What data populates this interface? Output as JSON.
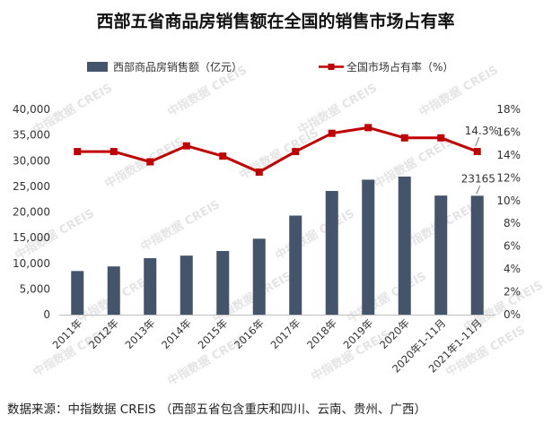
{
  "chart_data": {
    "type": "bar+line",
    "title": "西部五省商品房销售额在全国的销售市场占有率",
    "categories": [
      "2011年",
      "2012年",
      "2013年",
      "2014年",
      "2015年",
      "2016年",
      "2017年",
      "2018年",
      "2019年",
      "2020年",
      "2020年1-11月",
      "2021年1-11月"
    ],
    "series": [
      {
        "name": "西部商品房销售额（亿元）",
        "type": "bar",
        "axis": "left",
        "color": "#44546a",
        "values": [
          8500,
          9400,
          11000,
          11500,
          12400,
          14800,
          19300,
          24100,
          26300,
          26900,
          23200,
          23165
        ]
      },
      {
        "name": "全国市场占有率（%）",
        "type": "line",
        "axis": "right",
        "color": "#c00000",
        "values": [
          14.3,
          14.3,
          13.4,
          14.8,
          13.9,
          12.5,
          14.3,
          15.9,
          16.4,
          15.5,
          15.5,
          14.3
        ]
      }
    ],
    "y_left": {
      "min": 0,
      "max": 40000,
      "ticks": [
        "0",
        "5,000",
        "10,000",
        "15,000",
        "20,000",
        "25,000",
        "30,000",
        "35,000",
        "40,000"
      ]
    },
    "y_right": {
      "min": 0,
      "max": 18,
      "ticks": [
        "0%",
        "2%",
        "4%",
        "6%",
        "8%",
        "10%",
        "12%",
        "14%",
        "16%",
        "18%"
      ]
    },
    "annotations": [
      {
        "series": 1,
        "index": 11,
        "text": "14.3%"
      },
      {
        "series": 0,
        "index": 11,
        "text": "23165"
      }
    ],
    "legend_position": "top",
    "grid": false
  },
  "source_text": "数据来源：中指数据 CREIS （西部五省包含重庆和四川、云南、贵州、广西）",
  "watermark_text": "中指数据 CREIS"
}
